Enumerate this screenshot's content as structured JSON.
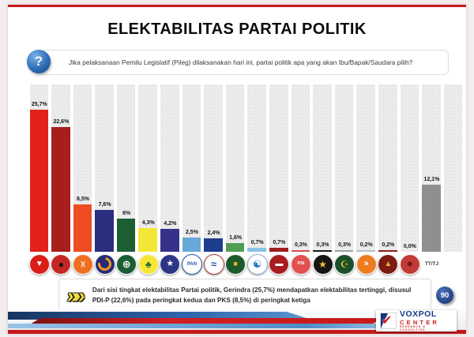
{
  "page": {
    "page_number": "90"
  },
  "header": {
    "title": "ELEKTABILITAS PARTAI POLITIK",
    "question_glyph": "?",
    "question": "Jika pelaksanaan Pemilu Legislatif (Pileg) dilaksanakan hari ini, partai politik apa yang akan Ibu/Bapak/Saudara pilih?"
  },
  "chart_data": {
    "type": "bar",
    "title": "ELEKTABILITAS PARTAI POLITIK",
    "unit": "%",
    "ylim": [
      0,
      27
    ],
    "grid": "vertical-stripes",
    "legend": "none",
    "categories": [
      "gerindra",
      "pdi-p",
      "pks",
      "nasdem",
      "pkb",
      "golkar",
      "demokrat",
      "pan",
      "perindo",
      "ppp",
      "gelora",
      "buruh",
      "psi",
      "pkn",
      "pbb",
      "hanura",
      "garuda",
      "ummat",
      "tt-tj"
    ],
    "values": [
      25.7,
      22.6,
      8.5,
      7.6,
      6,
      4.3,
      4.2,
      2.5,
      2.4,
      1.6,
      0.7,
      0.7,
      0.3,
      0.3,
      0.3,
      0.2,
      0.2,
      0.0,
      12.1
    ],
    "labels": [
      "25,7%",
      "22,6%",
      "8,5%",
      "7,6%",
      "6%",
      "4,3%",
      "4,2%",
      "2,5%",
      "2,4%",
      "1,6%",
      "0,7%",
      "0,7%",
      "0,3%",
      "0,3%",
      "0,3%",
      "0,2%",
      "0,2%",
      "0,0%",
      "12,1%"
    ],
    "bar_colors": [
      "#e3201a",
      "#a61f1c",
      "#ee4c23",
      "#2b2d7e",
      "#1d5e33",
      "#f3e636",
      "#35318a",
      "#68a8d8",
      "#1e3d8f",
      "#4f9e52",
      "#85c4e8",
      "#9e1d1d",
      "#d94f4f",
      "#1c1c1c",
      "#9aa59d",
      "#b9bfc4",
      "#8e1f1a",
      "#c23a35",
      "#8f8f8f"
    ],
    "icons": [
      {
        "name": "gerindra-party-logo",
        "bg": "#d81e15",
        "glyph": "▼",
        "fg": "#ffffff",
        "fs": 10
      },
      {
        "name": "pdip-party-logo",
        "bg": "#c42724",
        "glyph": "●",
        "fg": "#1c1214",
        "fs": 12
      },
      {
        "name": "pks-party-logo",
        "bg": "#ee6f20",
        "glyph": ")(",
        "fg": "#ffffff",
        "fs": 8
      },
      {
        "name": "nasdem-party-logo",
        "bg": "#262c75",
        "style": "swirl"
      },
      {
        "name": "pkb-party-logo",
        "bg": "#1c5e33",
        "glyph": "⊕",
        "fg": "#ffffff",
        "fs": 13
      },
      {
        "name": "golkar-party-logo",
        "bg": "#f6e735",
        "glyph": "♣",
        "fg": "#256b2d",
        "fs": 12
      },
      {
        "name": "demokrat-party-logo",
        "bg": "#2c3586",
        "glyph": "★",
        "fg": "#ffffff",
        "fs": 11
      },
      {
        "name": "pan-party-logo",
        "bg": "#ffffff",
        "glyph": "PAN",
        "fg": "#2458a5",
        "fs": 6,
        "border": "#2458a5"
      },
      {
        "name": "perindo-party-logo",
        "bg": "#ffffff",
        "glyph": "≈",
        "fg": "#1f4fa3",
        "fs": 13,
        "border": "#b03a3a"
      },
      {
        "name": "ppp-party-logo",
        "bg": "#1d5a2c",
        "glyph": "■",
        "fg": "#e3b71f",
        "fs": 9
      },
      {
        "name": "gelora-party-logo",
        "bg": "#ffffff",
        "glyph": "☯",
        "fg": "#1f6fc2",
        "fs": 13,
        "border": "#8fb4d8"
      },
      {
        "name": "buruh-party-logo",
        "bg": "#a81d22",
        "glyph": "▬",
        "fg": "#ffffff",
        "fs": 10
      },
      {
        "name": "psi-party-logo",
        "bg": "#e35050",
        "glyph": "PSI",
        "fg": "#ffffff",
        "fs": 5.5
      },
      {
        "name": "pkn-party-logo",
        "bg": "#151515",
        "glyph": "★",
        "fg": "#f0c030",
        "fs": 12
      },
      {
        "name": "pbb-party-logo",
        "bg": "#1a4f2a",
        "glyph": "☪",
        "fg": "#f0c030",
        "fs": 12
      },
      {
        "name": "hanura-party-logo",
        "bg": "#ee7c1e",
        "glyph": "»",
        "fg": "#ffffff",
        "fs": 11
      },
      {
        "name": "garuda-party-logo",
        "bg": "#7d1b12",
        "glyph": "▲",
        "fg": "#e9b627",
        "fs": 10
      },
      {
        "name": "ummat-party-logo",
        "bg": "#c23a35",
        "glyph": "◆",
        "fg": "#7d1414",
        "fs": 10
      },
      {
        "name": "ttj-label",
        "text": "TT/TJ"
      }
    ],
    "ttj_label": "TT/TJ"
  },
  "footnote": {
    "chevron_glyph": "»»",
    "text": "Dari sisi tingkat elektabilitas Partai politik, Gerindra (25,7%) mendapatkan elektabilitas tertinggi, disusul PDI-P (22,6%) pada peringkat kedua dan PKS (8,5%) di peringkat ketiga"
  },
  "footer": {
    "check_glyph": "✔",
    "brand_name": "VOXPOL",
    "brand_name2": "CENTER",
    "brand_tagline": "RESEARCH & CONSULTING"
  }
}
